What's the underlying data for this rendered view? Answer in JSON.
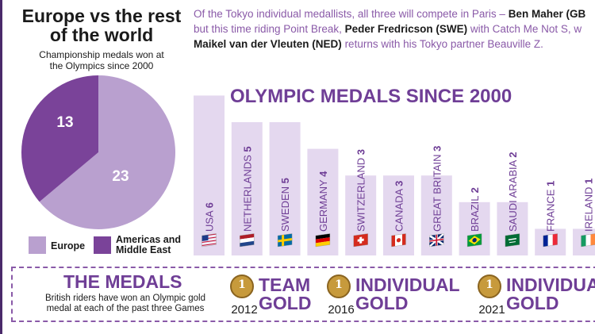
{
  "pie": {
    "title_line1": "Europe vs the rest",
    "title_line2": "of the world",
    "subtitle_line1": "Championship medals won at",
    "subtitle_line2": "the Olympics since 2000",
    "legend": [
      {
        "label_line1": "Europe",
        "label_line2": "",
        "color": "#b9a0cf"
      },
      {
        "label_line1": "Americas and",
        "label_line2": "Middle East",
        "color": "#7a4399"
      }
    ]
  },
  "intro": {
    "line1_pre": "Of the Tokyo individual medallists, all three will compete in Paris – ",
    "line1_bold": "Ben Maher (GB",
    "line2_pre": "but this time riding Point Break, ",
    "line2_bold": "Peder Fredricson (SWE)",
    "line2_post": " with Catch Me Not S, w",
    "line3_bold": "Maikel van der Vleuten (NED)",
    "line3_post": " returns with his Tokyo partner Beauville Z."
  },
  "bars": {
    "title": "OLYMPIC MEDALS SINCE 2000"
  },
  "medals": {
    "title": "THE MEDALS",
    "subtitle_line1": "British riders have won an Olympic gold",
    "subtitle_line2": "medal at each of the past three Games",
    "items": [
      {
        "year": "2012",
        "name_line1": "TEAM",
        "name_line2": "GOLD",
        "medal_number": "1"
      },
      {
        "year": "2016",
        "name_line1": "INDIVIDUAL",
        "name_line2": "GOLD",
        "medal_number": "1"
      },
      {
        "year": "2021",
        "name_line1": "INDIVIDUAL",
        "name_line2": "GOLD",
        "medal_number": "1"
      }
    ]
  },
  "chart_data": [
    {
      "type": "pie",
      "title": "Europe vs the rest of the world",
      "subtitle": "Championship medals won at the Olympics since 2000",
      "categories": [
        "Europe",
        "Americas and Middle East"
      ],
      "values": [
        23,
        13
      ],
      "colors": [
        "#b9a0cf",
        "#7a4399"
      ],
      "legend": "bottom"
    },
    {
      "type": "bar",
      "title": "OLYMPIC MEDALS SINCE 2000",
      "categories": [
        "USA",
        "NETHERLANDS",
        "SWEDEN",
        "GERMANY",
        "SWITZERLAND",
        "CANADA",
        "GREAT BRITAIN",
        "BRAZIL",
        "SAUDI ARABIA",
        "FRANCE",
        "IRELAND"
      ],
      "values": [
        6,
        5,
        5,
        4,
        3,
        3,
        3,
        2,
        2,
        1,
        1
      ],
      "bar_color": "#e4d8ef",
      "label_color": "#6f3e96",
      "flags": [
        "us-flag-icon",
        "netherlands-flag-icon",
        "sweden-flag-icon",
        "germany-flag-icon",
        "switzerland-flag-icon",
        "canada-flag-icon",
        "great-britain-flag-icon",
        "brazil-flag-icon",
        "saudi-arabia-flag-icon",
        "france-flag-icon",
        "ireland-flag-icon"
      ]
    }
  ]
}
